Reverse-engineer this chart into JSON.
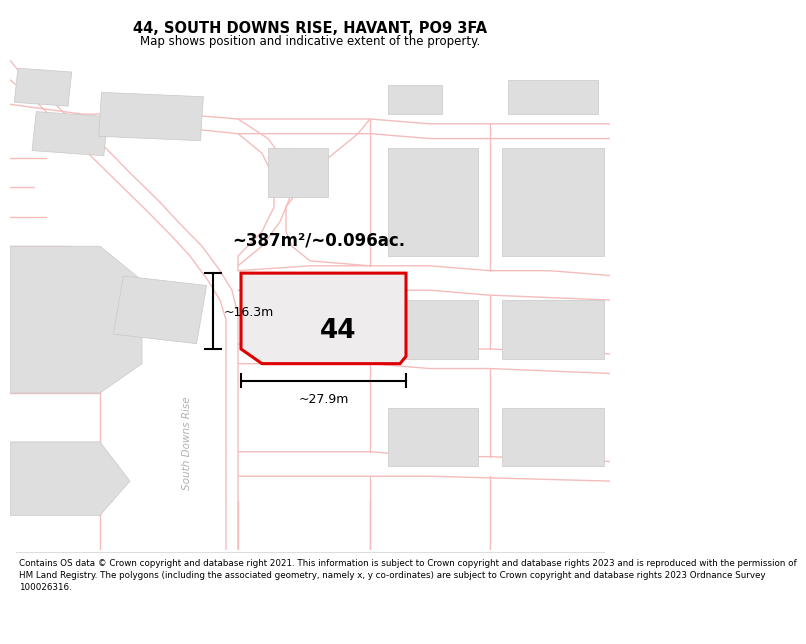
{
  "title": "44, SOUTH DOWNS RISE, HAVANT, PO9 3FA",
  "subtitle": "Map shows position and indicative extent of the property.",
  "footer_lines": [
    "Contains OS data © Crown copyright and database right 2021. This information is subject to Crown copyright and database rights 2023 and is reproduced with the permission of",
    "HM Land Registry. The polygons (including the associated geometry, namely x, y co-ordinates) are subject to Crown copyright and database rights 2023 Ordnance Survey",
    "100026316."
  ],
  "map_bg": "#f7f5f5",
  "area_label": "~387m²/~0.096ac.",
  "plot_number": "44",
  "width_label": "~27.9m",
  "height_label": "~16.3m",
  "road_label": "South Downs Rise",
  "road_color": "#f5bcbc",
  "plot_color": "#dd0000",
  "plot_fill": "#eeecec",
  "bld_color": "#dedede",
  "bld_edge": "#c8c8c8",
  "title_fontsize": 10.5,
  "subtitle_fontsize": 8.5,
  "footer_fontsize": 6.3
}
